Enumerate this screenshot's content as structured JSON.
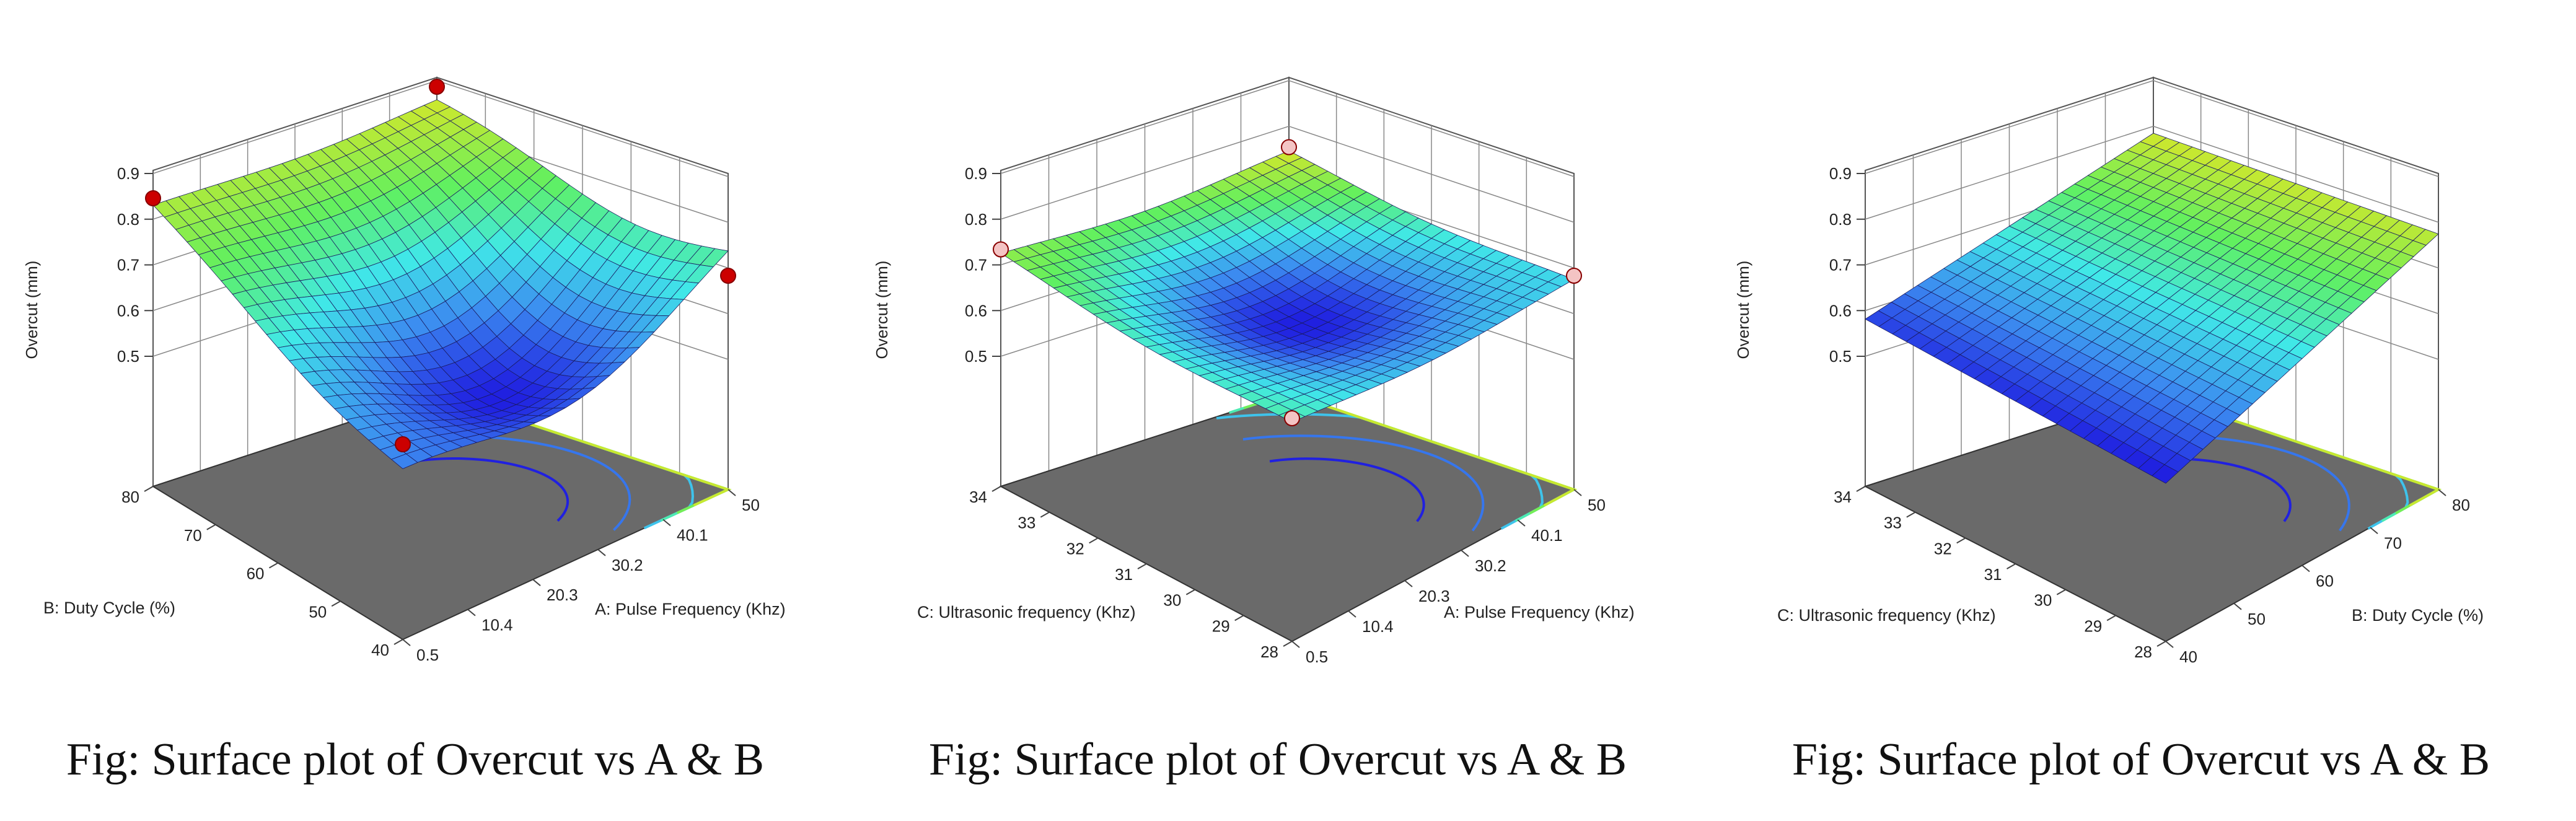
{
  "figures": [
    {
      "caption": "Fig: Surface plot of Overcut vs A & B",
      "x_ticks_label": "A: Pulse Frequency (Khz)",
      "y_ticks_label": "B: Duty Cycle (%)"
    },
    {
      "caption": "Fig: Surface plot of Overcut vs A & B",
      "x_ticks_label": "A: Pulse Frequency (Khz)",
      "y_ticks_label": "C: Ultrasonic frequency (Khz)"
    },
    {
      "caption": "Fig: Surface plot of Overcut vs A & B",
      "x_ticks_label": "B: Duty Cycle (%)",
      "y_ticks_label": "C: Ultrasonic frequency (Khz)"
    }
  ],
  "chart_data": [
    {
      "type": "surface",
      "zlabel": "Overcut (mm)",
      "xlabel": "A: Pulse Frequency (Khz)",
      "ylabel": "B: Duty Cycle (%)",
      "xticks": [
        "0.5",
        "10.4",
        "20.3",
        "30.2",
        "40.1",
        "50"
      ],
      "yticks": [
        "40",
        "50",
        "60",
        "70",
        "80"
      ],
      "zticks": [
        "0.5",
        "0.6",
        "0.7",
        "0.8",
        "0.9"
      ],
      "xlim": [
        0.5,
        50
      ],
      "ylim": [
        40,
        80
      ],
      "zlim": [
        0.5,
        0.9
      ],
      "surface_corners": {
        "A0.5_B40": 0.62,
        "A50_B40": 0.79,
        "A0.5_B80": 0.83,
        "A50_B80": 0.86
      },
      "minimum": {
        "A": 28,
        "B": 52,
        "overcut": 0.52
      },
      "design_points": [
        {
          "A": 0.5,
          "B": 40,
          "overcut": 0.64
        },
        {
          "A": 50,
          "B": 80,
          "overcut": 0.88
        },
        {
          "A": 0.5,
          "B": 80,
          "overcut": 0.84
        },
        {
          "A": 50,
          "B": 40,
          "overcut": 0.68
        }
      ],
      "colormap": [
        "#2020e0",
        "#3c8cf0",
        "#40e8e8",
        "#60f060",
        "#c8e830"
      ]
    },
    {
      "type": "surface",
      "zlabel": "Overcut (mm)",
      "xlabel": "A: Pulse Frequency (Khz)",
      "ylabel": "C: Ultrasonic frequency (Khz)",
      "xticks": [
        "0.5",
        "10.4",
        "20.3",
        "30.2",
        "40.1",
        "50"
      ],
      "yticks": [
        "28",
        "29",
        "30",
        "31",
        "32",
        "33",
        "34"
      ],
      "zticks": [
        "0.5",
        "0.6",
        "0.7",
        "0.8",
        "0.9"
      ],
      "xlim": [
        0.5,
        50
      ],
      "ylim": [
        28,
        34
      ],
      "zlim": [
        0.5,
        0.9
      ],
      "surface_corners": {
        "A0.5_C28": 0.7,
        "A50_C28": 0.68,
        "A0.5_C34": 0.73,
        "A50_C34": 0.75
      },
      "minimum": {
        "A": 25,
        "C": 31,
        "overcut": 0.62
      },
      "design_points": [
        {
          "A": 0.5,
          "C": 34,
          "overcut": 0.73
        },
        {
          "A": 50,
          "C": 34,
          "overcut": 0.75
        },
        {
          "A": 0.5,
          "C": 28,
          "overcut": 0.7
        },
        {
          "A": 50,
          "C": 28,
          "overcut": 0.68
        }
      ],
      "colormap": [
        "#2020e0",
        "#3c8cf0",
        "#40e8e8",
        "#60f060",
        "#c8e830"
      ]
    },
    {
      "type": "surface",
      "zlabel": "Overcut (mm)",
      "xlabel": "B: Duty Cycle (%)",
      "ylabel": "C: Ultrasonic frequency (Khz)",
      "xticks": [
        "40",
        "50",
        "60",
        "70",
        "80"
      ],
      "yticks": [
        "28",
        "29",
        "30",
        "31",
        "32",
        "33",
        "34"
      ],
      "zticks": [
        "0.5",
        "0.6",
        "0.7",
        "0.8",
        "0.9"
      ],
      "xlim": [
        40,
        80
      ],
      "ylim": [
        28,
        34
      ],
      "zlim": [
        0.5,
        0.9
      ],
      "surface_corners": {
        "B40_C28": 0.56,
        "B80_C28": 0.77,
        "B40_C34": 0.58,
        "B80_C34": 0.78
      },
      "design_points": [],
      "colormap": [
        "#2020e0",
        "#3c8cf0",
        "#40e8e8",
        "#60f060",
        "#c8e830"
      ]
    }
  ]
}
